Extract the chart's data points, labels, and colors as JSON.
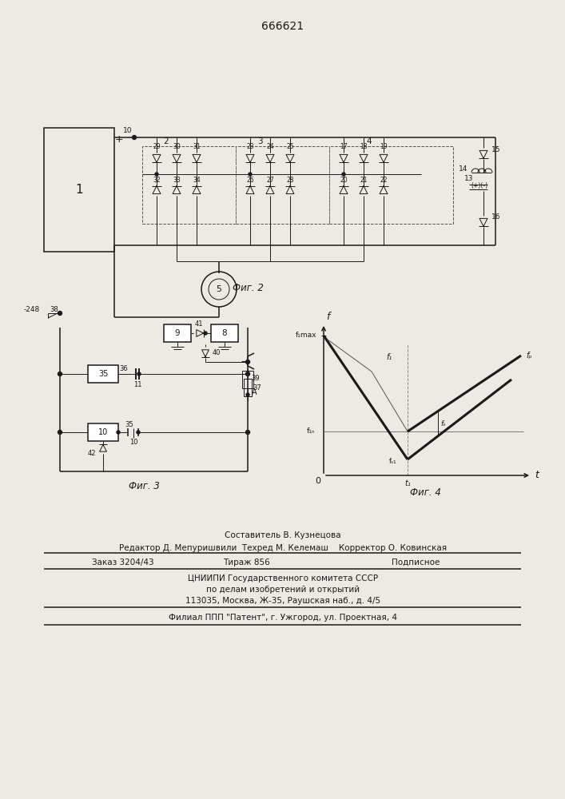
{
  "title": "666621",
  "fig2_label": "Фиг. 2",
  "fig3_label": "Фиг. 3",
  "fig4_label": "Фиг. 4",
  "footer_lines": [
    "Составитель В. Кузнецова",
    "Редактор Д. Мепуришвили  Техред М. Келемаш    Корректор О. Ковинская",
    "Заказ 3204/43",
    "Тираж 856",
    "Подписное",
    "ЦНИИПИ Государственного комитета СССР",
    "по делам изобретений и открытий",
    "113035, Москва, Ж-35, Раушская наб., д. 4/5",
    "Филиал ППП \"Патент\", г. Ужгород, ул. Проектная, 4"
  ],
  "bg_color": "#ede9e3",
  "line_color": "#1a1a1a",
  "thin": 0.7,
  "med": 1.1,
  "thick": 2.2
}
